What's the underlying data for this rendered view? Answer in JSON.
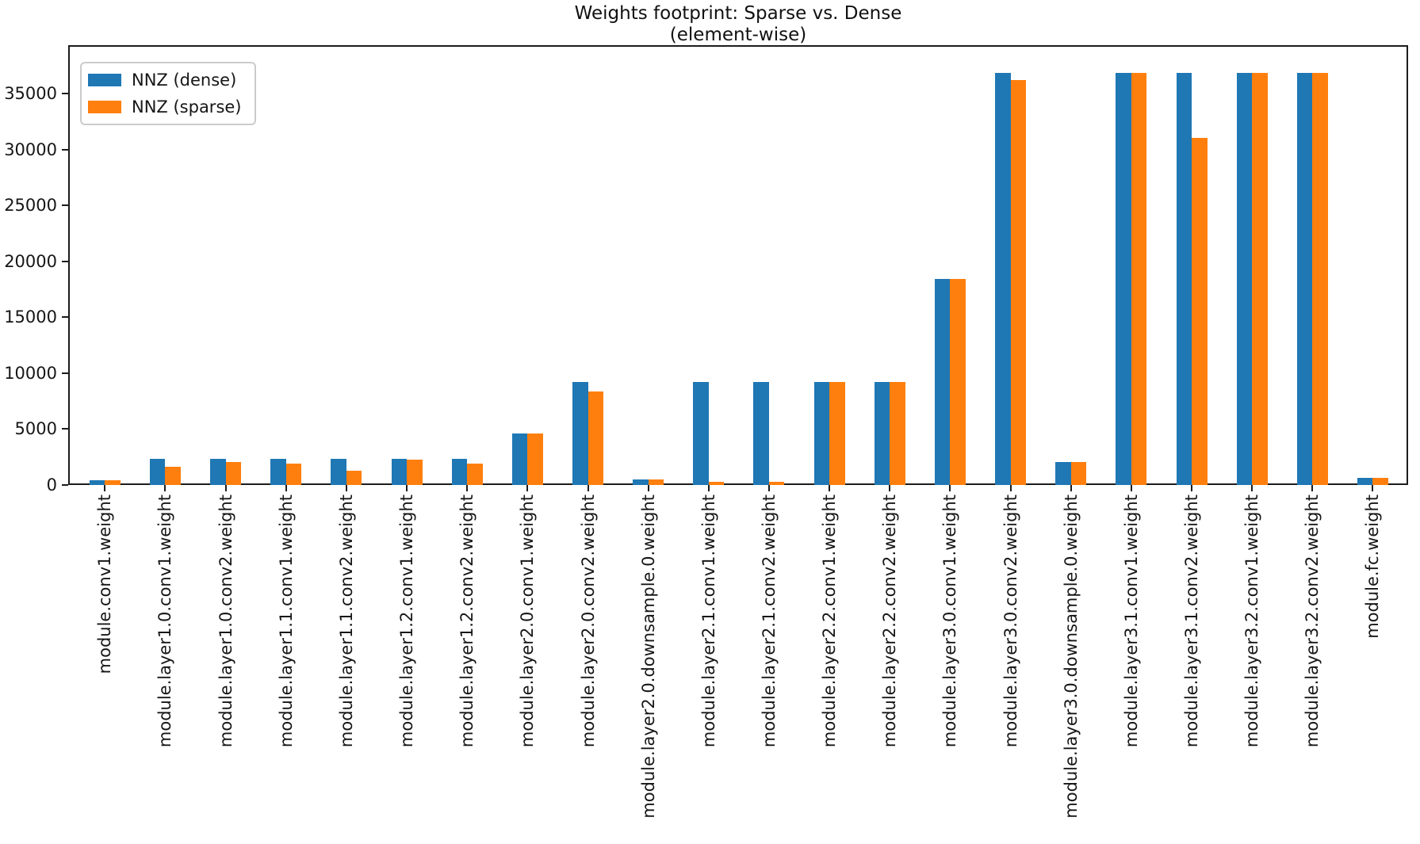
{
  "title": {
    "line1": "Weights footprint: Sparse vs. Dense",
    "line2": "(element-wise)"
  },
  "colors": {
    "dense": "#1f77b4",
    "sparse": "#ff7f0e",
    "spine": "#1c1c1c",
    "legend_border": "#cbcbcb"
  },
  "chart_data": {
    "type": "bar",
    "title": "Weights footprint: Sparse vs. Dense\n(element-wise)",
    "xlabel": "",
    "ylabel": "",
    "grid": false,
    "legend_position": "upper left",
    "ylim": [
      0,
      39322
    ],
    "yticks": [
      0,
      5000,
      10000,
      15000,
      20000,
      25000,
      30000,
      35000
    ],
    "categories": [
      "module.conv1.weight",
      "module.layer1.0.conv1.weight",
      "module.layer1.0.conv2.weight",
      "module.layer1.1.conv1.weight",
      "module.layer1.1.conv2.weight",
      "module.layer1.2.conv1.weight",
      "module.layer1.2.conv2.weight",
      "module.layer2.0.conv1.weight",
      "module.layer2.0.conv2.weight",
      "module.layer2.0.downsample.0.weight",
      "module.layer2.1.conv1.weight",
      "module.layer2.1.conv2.weight",
      "module.layer2.2.conv1.weight",
      "module.layer2.2.conv2.weight",
      "module.layer3.0.conv1.weight",
      "module.layer3.0.conv2.weight",
      "module.layer3.0.downsample.0.weight",
      "module.layer3.1.conv1.weight",
      "module.layer3.1.conv2.weight",
      "module.layer3.2.conv1.weight",
      "module.layer3.2.conv2.weight",
      "module.fc.weight"
    ],
    "series": [
      {
        "name": "NNZ (dense)",
        "color": "#1f77b4",
        "values": [
          432,
          2304,
          2304,
          2304,
          2304,
          2304,
          2304,
          4608,
          9216,
          512,
          9216,
          9216,
          9216,
          9216,
          18432,
          36864,
          2048,
          36864,
          36864,
          36864,
          36864,
          640
        ]
      },
      {
        "name": "NNZ (sparse)",
        "color": "#ff7f0e",
        "values": [
          432,
          1600,
          2050,
          1900,
          1300,
          2250,
          1900,
          4608,
          8350,
          512,
          300,
          300,
          9216,
          9216,
          18432,
          36200,
          2048,
          36864,
          31000,
          36864,
          36864,
          640
        ]
      }
    ]
  }
}
